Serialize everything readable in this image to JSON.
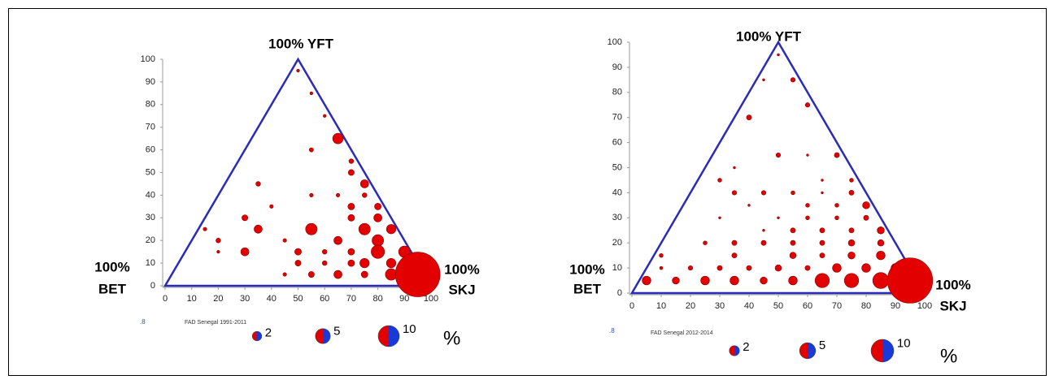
{
  "chart_data": [
    {
      "type": "bubble",
      "subtitle": "FAD Senegal 1991-2011",
      "corner_note": ".8",
      "apex_label": "100% YFT",
      "left_label": [
        "100%",
        "BET"
      ],
      "right_label": [
        "100%",
        "SKJ"
      ],
      "color": "#e30000",
      "edge_color": "#8b0000",
      "triangle_color": "#2b2bb8",
      "xlim": [
        0,
        100
      ],
      "ylim": [
        0,
        100
      ],
      "xticks": [
        0,
        10,
        20,
        30,
        40,
        50,
        60,
        70,
        80,
        90,
        100
      ],
      "yticks": [
        0,
        10,
        20,
        30,
        40,
        50,
        60,
        70,
        80,
        90,
        100
      ],
      "x": [
        15,
        50,
        55,
        60,
        65,
        55,
        70,
        70,
        75,
        35,
        40,
        55,
        65,
        75,
        70,
        80,
        30,
        70,
        80,
        75,
        55,
        85,
        35,
        20,
        45,
        65,
        80,
        20,
        30,
        50,
        60,
        70,
        80,
        90,
        50,
        60,
        70,
        75,
        85,
        45,
        55,
        65,
        75,
        85,
        95
      ],
      "y": [
        25,
        95,
        85,
        75,
        65,
        60,
        55,
        50,
        45,
        45,
        35,
        40,
        40,
        40,
        35,
        35,
        30,
        30,
        30,
        25,
        25,
        25,
        25,
        20,
        20,
        20,
        20,
        15,
        15,
        15,
        15,
        15,
        15,
        15,
        10,
        10,
        10,
        10,
        10,
        5,
        5,
        5,
        5,
        5,
        5
      ],
      "sizes": [
        0.3,
        0.2,
        0.2,
        0.2,
        2.5,
        0.4,
        0.5,
        0.8,
        1.5,
        0.5,
        0.3,
        0.3,
        0.3,
        0.5,
        1,
        1,
        0.8,
        1,
        1.5,
        3,
        3,
        2,
        1.5,
        0.5,
        0.3,
        1.5,
        3,
        0.2,
        1.5,
        1,
        0.5,
        1,
        4,
        3,
        0.8,
        0.5,
        1,
        2,
        2,
        0.3,
        0.8,
        1.5,
        1,
        3,
        45
      ],
      "legend": {
        "sizes": [
          2,
          5,
          10
        ],
        "unit": "%"
      }
    },
    {
      "type": "bubble",
      "subtitle": "FAD Senegal 2012-2014",
      "corner_note": ".8",
      "apex_label": "100% YFT",
      "left_label": [
        "100%",
        "BET"
      ],
      "right_label": [
        "100%",
        "SKJ"
      ],
      "color": "#e30000",
      "edge_color": "#8b0000",
      "triangle_color": "#2b2bb8",
      "xlim": [
        0,
        100
      ],
      "ylim": [
        0,
        100
      ],
      "xticks": [
        0,
        10,
        20,
        30,
        40,
        50,
        60,
        70,
        80,
        90,
        100
      ],
      "yticks": [
        0,
        10,
        20,
        30,
        40,
        50,
        60,
        70,
        80,
        90,
        100
      ],
      "x": [
        50,
        45,
        55,
        60,
        40,
        50,
        60,
        70,
        35,
        30,
        65,
        75,
        35,
        45,
        55,
        65,
        75,
        40,
        60,
        70,
        80,
        30,
        50,
        60,
        70,
        80,
        45,
        55,
        65,
        75,
        85,
        25,
        35,
        45,
        55,
        65,
        75,
        85,
        35,
        55,
        65,
        75,
        85,
        10,
        10,
        20,
        30,
        40,
        50,
        60,
        70,
        80,
        90,
        5,
        15,
        25,
        35,
        45,
        55,
        65,
        75,
        85,
        95
      ],
      "y": [
        95,
        85,
        85,
        75,
        70,
        55,
        55,
        55,
        50,
        45,
        45,
        45,
        40,
        40,
        40,
        40,
        40,
        35,
        35,
        35,
        35,
        30,
        30,
        30,
        30,
        30,
        25,
        25,
        25,
        25,
        25,
        20,
        20,
        20,
        20,
        20,
        20,
        20,
        15,
        15,
        15,
        15,
        15,
        15,
        10,
        10,
        10,
        10,
        10,
        10,
        10,
        10,
        10,
        5,
        5,
        5,
        5,
        5,
        5,
        5,
        5,
        5,
        5
      ],
      "sizes": [
        0.1,
        0.1,
        0.4,
        0.4,
        0.5,
        0.4,
        0.1,
        0.5,
        0.1,
        0.3,
        0.1,
        0.3,
        0.4,
        0.4,
        0.3,
        0.1,
        0.5,
        0.1,
        0.3,
        0.3,
        1,
        0.1,
        0.1,
        0.3,
        0.3,
        0.5,
        0.1,
        0.5,
        0.5,
        0.5,
        1,
        0.3,
        0.5,
        0.5,
        0.5,
        0.5,
        0.8,
        0.8,
        0.5,
        0.8,
        0.5,
        1,
        1.5,
        0.3,
        0.2,
        0.4,
        0.5,
        0.5,
        0.8,
        0.5,
        1.5,
        1.5,
        1.5,
        1.5,
        1,
        1.5,
        1.5,
        1,
        1.5,
        4,
        4,
        5,
        40
      ],
      "legend": {
        "sizes": [
          2,
          5,
          10
        ],
        "unit": "%"
      }
    }
  ]
}
